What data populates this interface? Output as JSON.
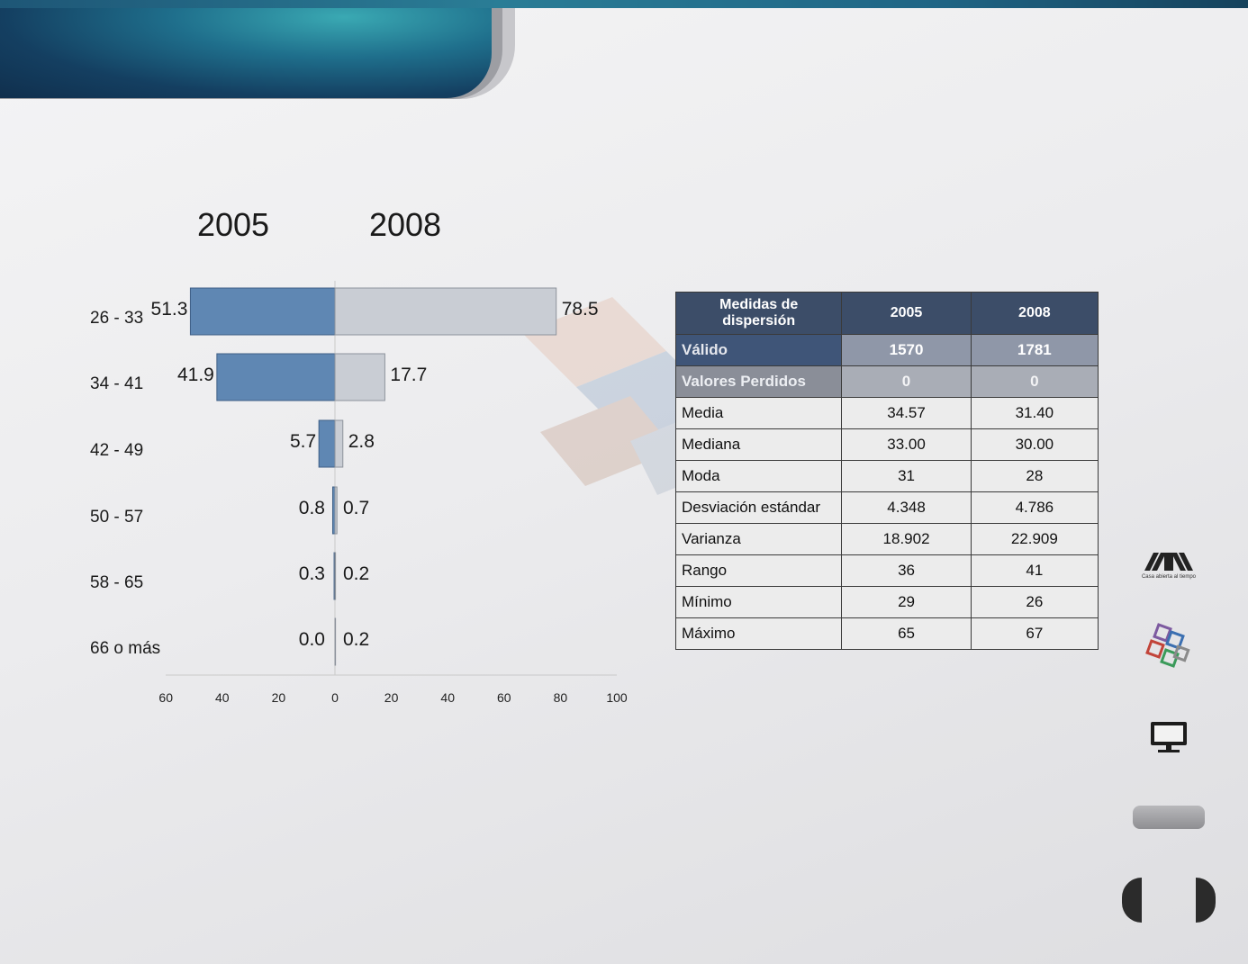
{
  "chart_data": {
    "type": "bar",
    "orientation": "horizontal-diverging",
    "categories": [
      "26 - 33",
      "34 - 41",
      "42 - 49",
      "50 - 57",
      "58 - 65",
      "66 o más"
    ],
    "series": [
      {
        "name": "2005",
        "values": [
          51.3,
          41.9,
          5.7,
          0.8,
          0.3,
          0.0
        ],
        "color": "#5f87b3"
      },
      {
        "name": "2008",
        "values": [
          78.5,
          17.7,
          2.8,
          0.7,
          0.2,
          0.2
        ],
        "color": "#c9cdd4"
      }
    ],
    "value_labels_left": [
      "51.3",
      "41.9",
      "5.7",
      "0.8",
      "0.3",
      "0.0"
    ],
    "value_labels_right": [
      "78.5",
      "17.7",
      "2.8",
      "0.7",
      "0.2",
      "0.2"
    ],
    "xlim": [
      -60,
      100
    ],
    "xticks": [
      -60,
      -40,
      -20,
      0,
      20,
      40,
      60,
      80,
      100
    ],
    "xtick_labels": [
      "60",
      "40",
      "20",
      "0",
      "20",
      "40",
      "60",
      "80",
      "100"
    ],
    "grid": false
  },
  "table": {
    "headers": [
      "Medidas  de dispersión",
      "2005",
      "2008"
    ],
    "rows": [
      {
        "label": "Válido",
        "v2005": "1570",
        "v2008": "1781",
        "style": "valid"
      },
      {
        "label": "Valores Perdidos",
        "v2005": "0",
        "v2008": "0",
        "style": "lost"
      },
      {
        "label": "Media",
        "v2005": "34.57",
        "v2008": "31.40",
        "style": "plain"
      },
      {
        "label": "Mediana",
        "v2005": "33.00",
        "v2008": "30.00",
        "style": "plain"
      },
      {
        "label": "Moda",
        "v2005": "31",
        "v2008": "28",
        "style": "plain"
      },
      {
        "label": "Desviación estándar",
        "v2005": "4.348",
        "v2008": "4.786",
        "style": "plain"
      },
      {
        "label": "Varianza",
        "v2005": "18.902",
        "v2008": "22.909",
        "style": "plain"
      },
      {
        "label": "Rango",
        "v2005": "36",
        "v2008": "41",
        "style": "plain"
      },
      {
        "label": "Mínimo",
        "v2005": "29",
        "v2008": "26",
        "style": "plain"
      },
      {
        "label": "Máximo",
        "v2005": "65",
        "v2008": "67",
        "style": "plain"
      }
    ]
  },
  "sidebar": {
    "uam_logo_icon": "uam-logo-icon",
    "uam_tagline": "Casa abierta al tiempo",
    "cubes_logo_icon": "cubes-logo-icon",
    "monitor_icon": "monitor-icon"
  },
  "colors": {
    "header_accent": "#1f6f8c",
    "bar_2005": "#5f87b3",
    "bar_2008": "#c9cdd4",
    "table_header": "#3c4d68"
  }
}
